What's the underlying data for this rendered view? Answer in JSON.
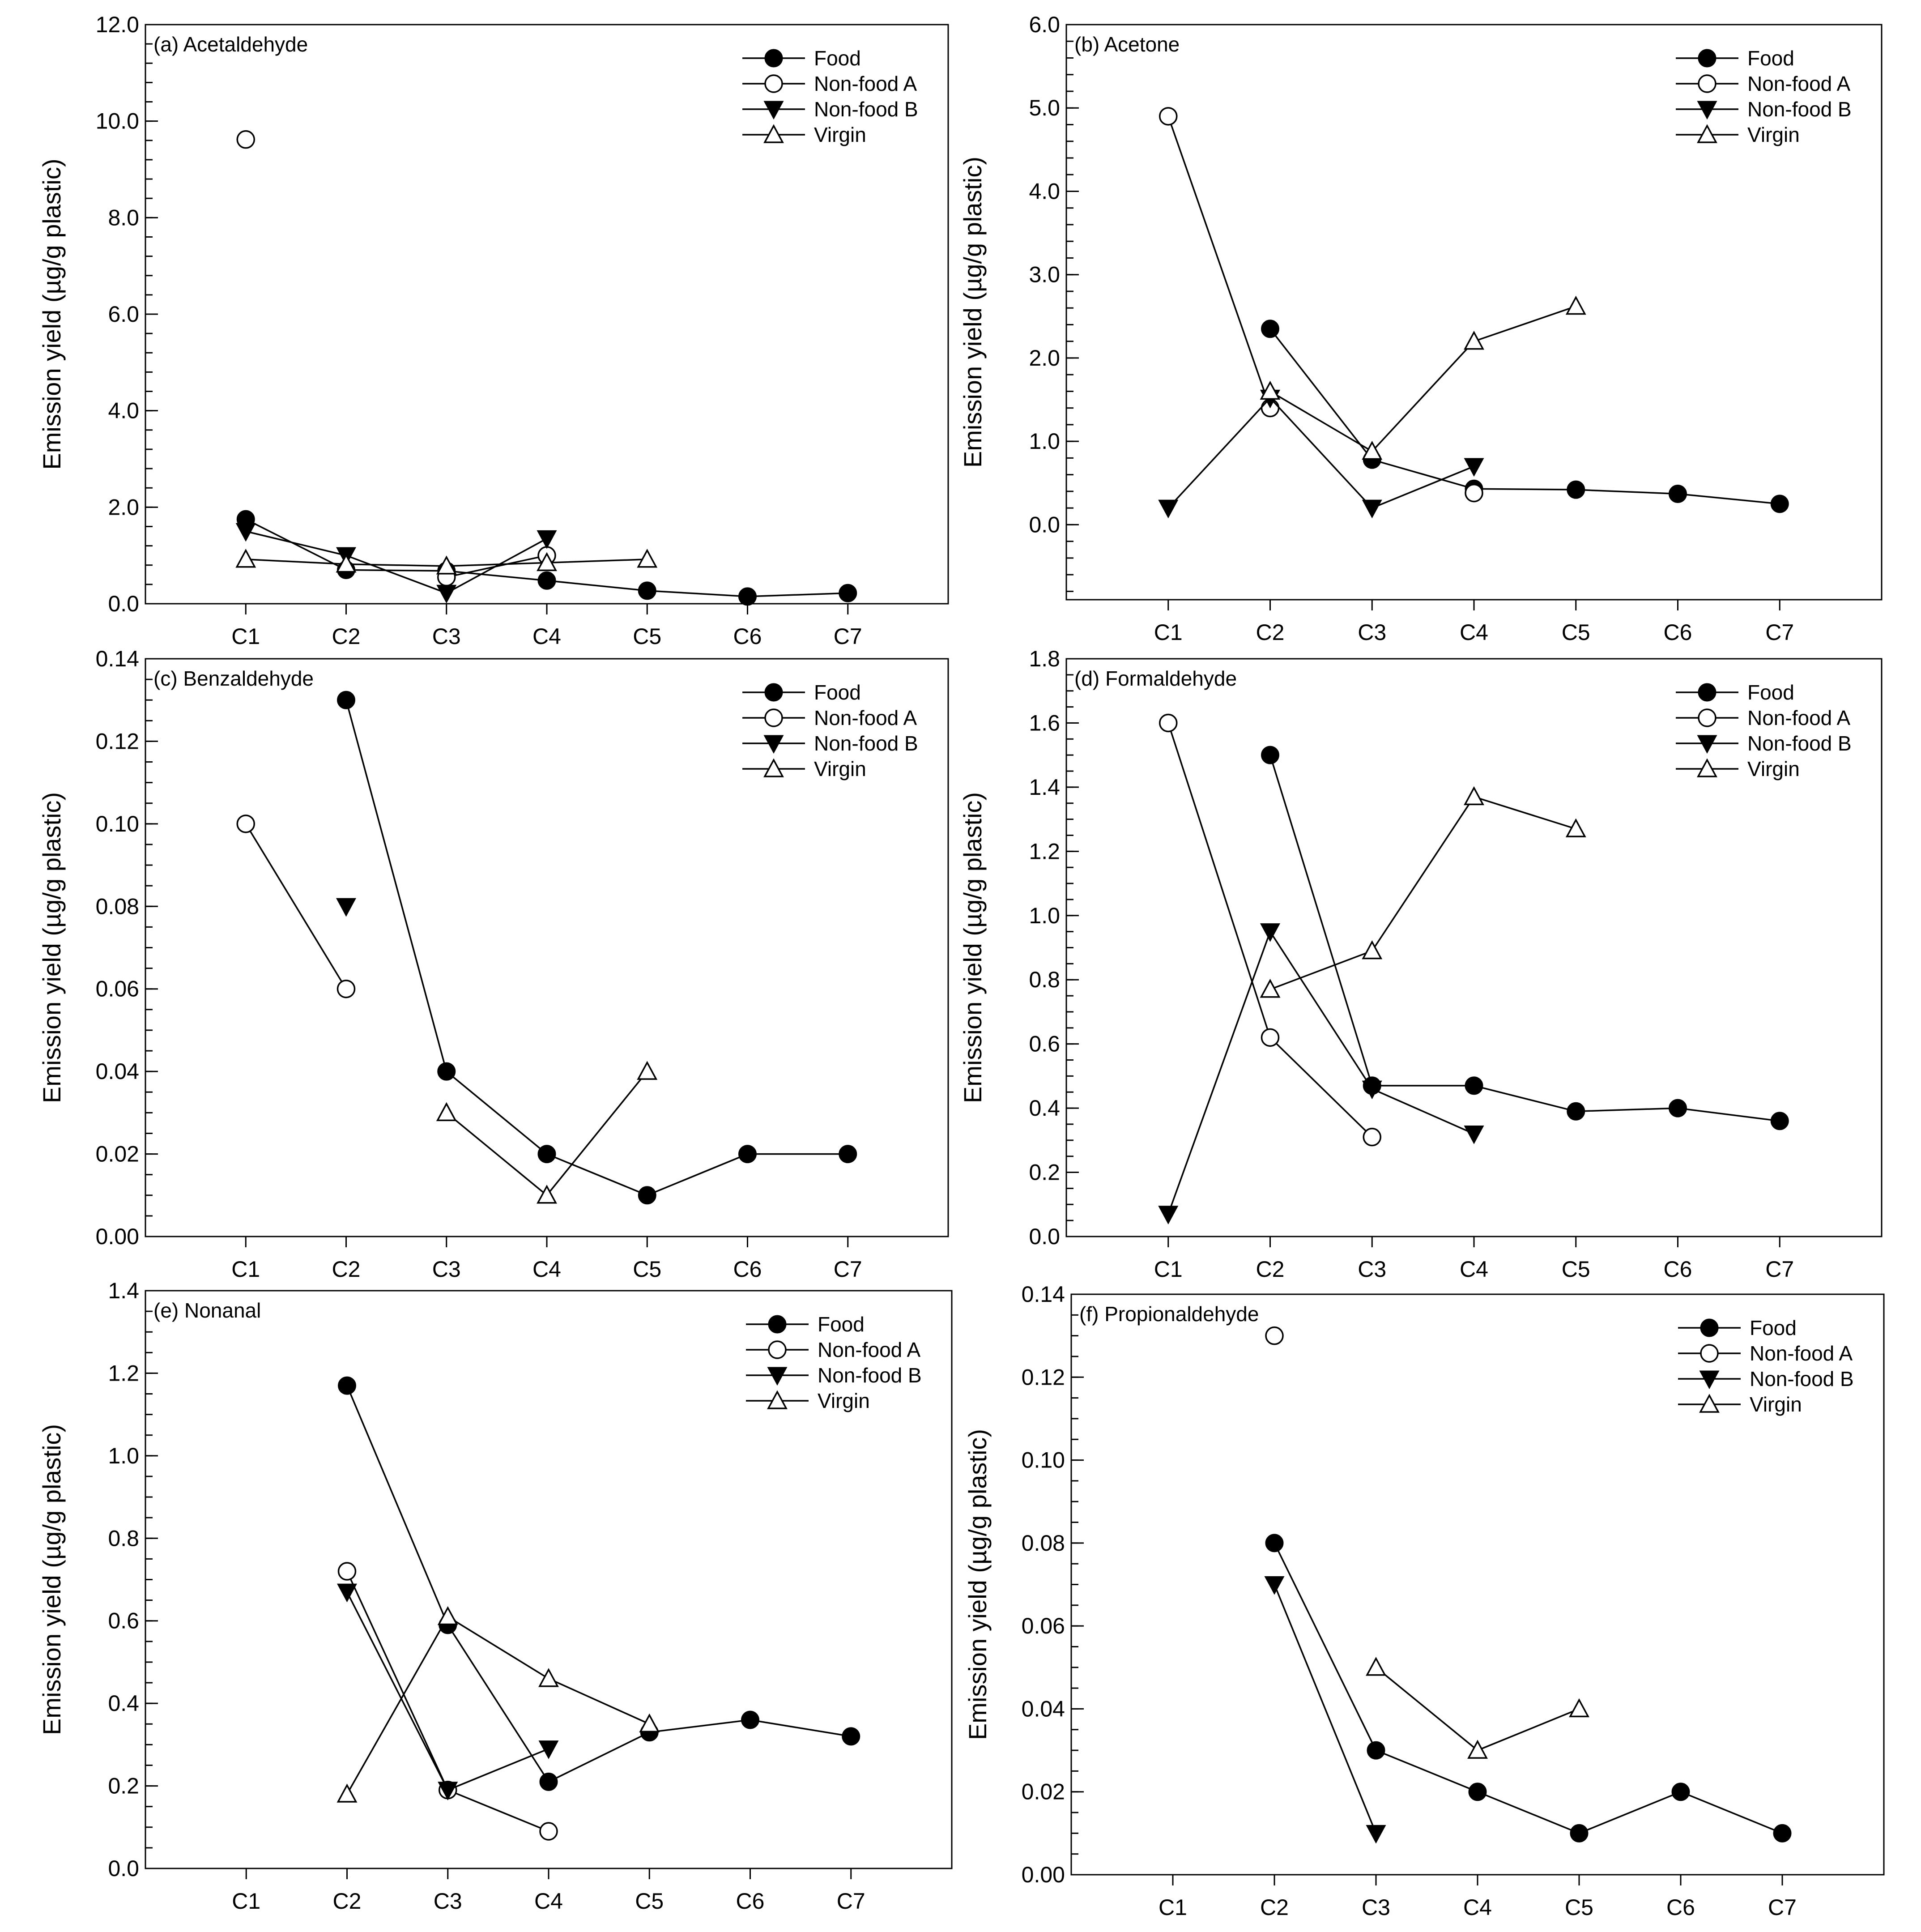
{
  "chart_data": [
    {
      "type": "line",
      "title": "(a) Acetaldehyde",
      "ylabel": "Emission yield (µg/g plastic)",
      "xlabel": "",
      "categories": [
        "C1",
        "C2",
        "C3",
        "C4",
        "C5",
        "C6",
        "C7"
      ],
      "ylim": [
        0,
        12
      ],
      "ytick_step": 2,
      "minor_step": 0.4,
      "ydecimals": 1,
      "series": [
        {
          "name": "Food",
          "marker": "filled-circle",
          "values": [
            1.75,
            0.7,
            0.68,
            0.48,
            0.27,
            0.15,
            0.22
          ]
        },
        {
          "name": "Non-food A",
          "marker": "open-circle",
          "values": [
            9.62,
            null,
            0.55,
            1.0,
            null,
            null,
            null
          ]
        },
        {
          "name": "Non-food B",
          "marker": "filled-triangle-down",
          "values": [
            1.5,
            1.0,
            0.22,
            1.35,
            null,
            null,
            null
          ]
        },
        {
          "name": "Virgin",
          "marker": "open-triangle-up",
          "values": [
            0.92,
            0.82,
            0.78,
            0.85,
            0.92,
            null,
            null
          ]
        }
      ],
      "legend": "top-right",
      "grid": false
    },
    {
      "type": "line",
      "title": "(b) Acetone",
      "ylabel": "Emission yield (µg/g plastic)",
      "xlabel": "",
      "categories": [
        "C1",
        "C2",
        "C3",
        "C4",
        "C5",
        "C6",
        "C7"
      ],
      "ylim": [
        -0.9,
        6
      ],
      "ytick_start": 0,
      "ytick_step": 1,
      "minor_step": 0.2,
      "ydecimals": 1,
      "series": [
        {
          "name": "Food",
          "marker": "filled-circle",
          "values": [
            null,
            2.35,
            0.78,
            0.43,
            0.42,
            0.37,
            0.25
          ]
        },
        {
          "name": "Non-food A",
          "marker": "open-circle",
          "values": [
            4.9,
            1.4,
            null,
            0.38,
            null,
            null,
            null
          ]
        },
        {
          "name": "Non-food B",
          "marker": "filled-triangle-down",
          "values": [
            0.2,
            1.52,
            0.2,
            0.7,
            null,
            null,
            null
          ]
        },
        {
          "name": "Virgin",
          "marker": "open-triangle-up",
          "values": [
            null,
            1.6,
            0.88,
            2.2,
            2.62,
            null,
            null
          ]
        }
      ],
      "legend": "top-right",
      "grid": false
    },
    {
      "type": "line",
      "title": "(c) Benzaldehyde",
      "ylabel": "Emission yield (µg/g plastic)",
      "xlabel": "",
      "categories": [
        "C1",
        "C2",
        "C3",
        "C4",
        "C5",
        "C6",
        "C7"
      ],
      "ylim": [
        0,
        0.14
      ],
      "ytick_step": 0.02,
      "minor_step": 0.005,
      "ydecimals": 2,
      "series": [
        {
          "name": "Food",
          "marker": "filled-circle",
          "values": [
            null,
            0.13,
            0.04,
            0.02,
            0.01,
            0.02,
            0.02
          ]
        },
        {
          "name": "Non-food A",
          "marker": "open-circle",
          "values": [
            0.1,
            0.06,
            null,
            null,
            null,
            null,
            null
          ]
        },
        {
          "name": "Non-food B",
          "marker": "filled-triangle-down",
          "values": [
            null,
            0.08,
            null,
            null,
            null,
            null,
            null
          ]
        },
        {
          "name": "Virgin",
          "marker": "open-triangle-up",
          "values": [
            null,
            null,
            0.03,
            0.01,
            0.04,
            null,
            null
          ]
        }
      ],
      "legend": "top-right",
      "grid": false
    },
    {
      "type": "line",
      "title": "(d) Formaldehyde",
      "ylabel": "Emission yield (µg/g plastic)",
      "xlabel": "",
      "categories": [
        "C1",
        "C2",
        "C3",
        "C4",
        "C5",
        "C6",
        "C7"
      ],
      "ylim": [
        0,
        1.8
      ],
      "ytick_step": 0.2,
      "minor_step": 0.05,
      "ydecimals": 1,
      "series": [
        {
          "name": "Food",
          "marker": "filled-circle",
          "values": [
            null,
            1.5,
            0.47,
            0.47,
            0.39,
            0.4,
            0.36
          ]
        },
        {
          "name": "Non-food A",
          "marker": "open-circle",
          "values": [
            1.6,
            0.62,
            0.31,
            null,
            null,
            null,
            null
          ]
        },
        {
          "name": "Non-food B",
          "marker": "filled-triangle-down",
          "values": [
            0.07,
            0.95,
            0.46,
            0.32,
            null,
            null,
            null
          ]
        },
        {
          "name": "Virgin",
          "marker": "open-triangle-up",
          "values": [
            null,
            0.77,
            0.89,
            1.37,
            1.27,
            null,
            null
          ]
        }
      ],
      "legend": "top-right",
      "grid": false
    },
    {
      "type": "line",
      "title": "(e) Nonanal",
      "ylabel": "Emission yield (µg/g plastic)",
      "xlabel": "",
      "categories": [
        "C1",
        "C2",
        "C3",
        "C4",
        "C5",
        "C6",
        "C7"
      ],
      "ylim": [
        0,
        1.4
      ],
      "ytick_step": 0.2,
      "minor_step": 0.05,
      "ydecimals": 1,
      "series": [
        {
          "name": "Food",
          "marker": "filled-circle",
          "values": [
            null,
            1.17,
            0.59,
            0.21,
            0.33,
            0.36,
            0.32
          ]
        },
        {
          "name": "Non-food A",
          "marker": "open-circle",
          "values": [
            null,
            0.72,
            0.19,
            0.09,
            null,
            null,
            null
          ]
        },
        {
          "name": "Non-food B",
          "marker": "filled-triangle-down",
          "values": [
            null,
            0.67,
            0.19,
            0.29,
            null,
            null,
            null
          ]
        },
        {
          "name": "Virgin",
          "marker": "open-triangle-up",
          "values": [
            null,
            0.18,
            0.61,
            0.46,
            0.35,
            null,
            null
          ]
        }
      ],
      "legend": "top-right",
      "grid": false
    },
    {
      "type": "line",
      "title": "(f) Propionaldehyde",
      "ylabel": "Emission yield (µg/g plastic)",
      "xlabel": "",
      "categories": [
        "C1",
        "C2",
        "C3",
        "C4",
        "C5",
        "C6",
        "C7"
      ],
      "ylim": [
        0,
        0.14
      ],
      "ytick_step": 0.02,
      "minor_step": 0.005,
      "ydecimals": 2,
      "series": [
        {
          "name": "Food",
          "marker": "filled-circle",
          "values": [
            null,
            0.08,
            0.03,
            0.02,
            0.01,
            0.02,
            0.01
          ]
        },
        {
          "name": "Non-food A",
          "marker": "open-circle",
          "values": [
            null,
            0.13,
            null,
            null,
            null,
            null,
            null
          ]
        },
        {
          "name": "Non-food B",
          "marker": "filled-triangle-down",
          "values": [
            null,
            0.07,
            0.01,
            null,
            null,
            null,
            null
          ]
        },
        {
          "name": "Virgin",
          "marker": "open-triangle-up",
          "values": [
            null,
            null,
            0.05,
            0.03,
            0.04,
            null,
            null
          ]
        }
      ],
      "legend": "top-right",
      "grid": false
    }
  ]
}
